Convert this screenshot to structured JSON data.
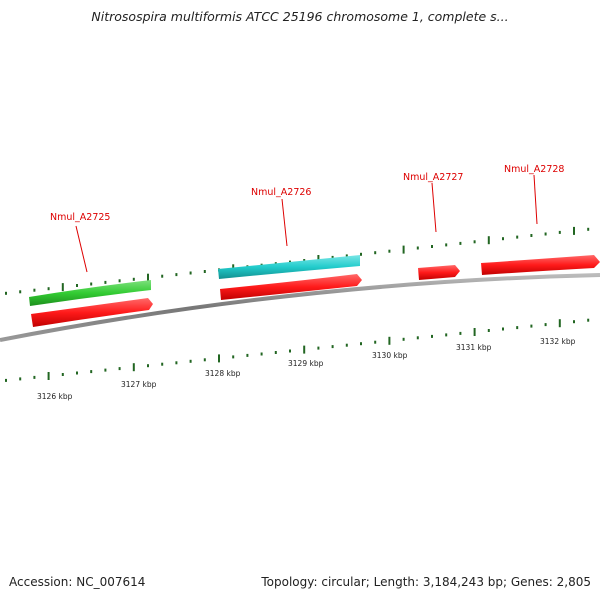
{
  "title": "Nitrosospira multiformis ATCC 25196 chromosome 1, complete s...",
  "footer": {
    "accession": "Accession: NC_007614",
    "summary": "Topology: circular; Length: 3,184,243 bp; Genes: 2,805"
  },
  "scale": {
    "tick_labels": [
      "3126 kbp",
      "3127 kbp",
      "3128 kbp",
      "3129 kbp",
      "3130 kbp",
      "3131 kbp",
      "3132 kbp"
    ]
  },
  "genes": [
    {
      "id": "Nmul_A2725",
      "label": "Nmul_A2725"
    },
    {
      "id": "Nmul_A2726",
      "label": "Nmul_A2726"
    },
    {
      "id": "Nmul_A2727",
      "label": "Nmul_A2727"
    },
    {
      "id": "Nmul_A2728",
      "label": "Nmul_A2728"
    }
  ],
  "colors": {
    "cds": "#ff1a1a",
    "other_feature_green": "#33cc33",
    "other_feature_cyan": "#22cccc",
    "backbone": "#888888",
    "tick": "#226622",
    "label": "#dd0000"
  }
}
